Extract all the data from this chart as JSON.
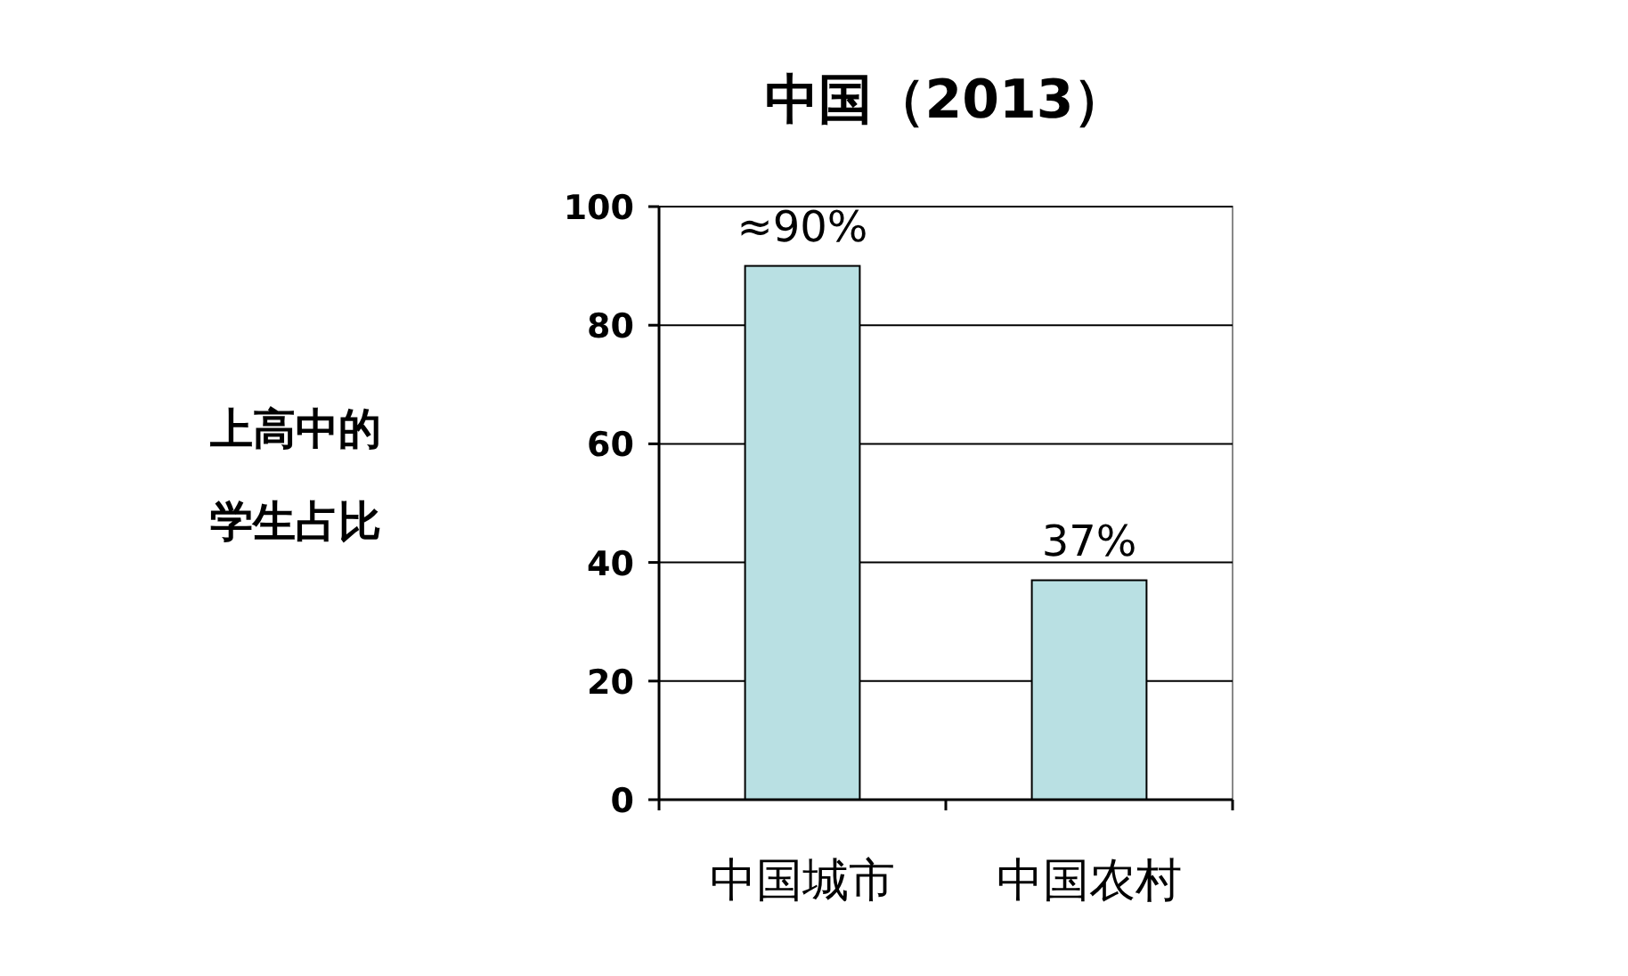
{
  "chart_data": {
    "type": "bar",
    "title": "中国（2013）",
    "ylabel": "上高中的学生占比",
    "categories": [
      "中国城市",
      "中国农村"
    ],
    "values": [
      90,
      37
    ],
    "value_labels": [
      "≈90%",
      "37%"
    ],
    "color": "#b9e0e3",
    "ylim": [
      0,
      100
    ],
    "yticks": [
      0,
      20,
      40,
      60,
      80,
      100
    ],
    "grid": "y"
  }
}
